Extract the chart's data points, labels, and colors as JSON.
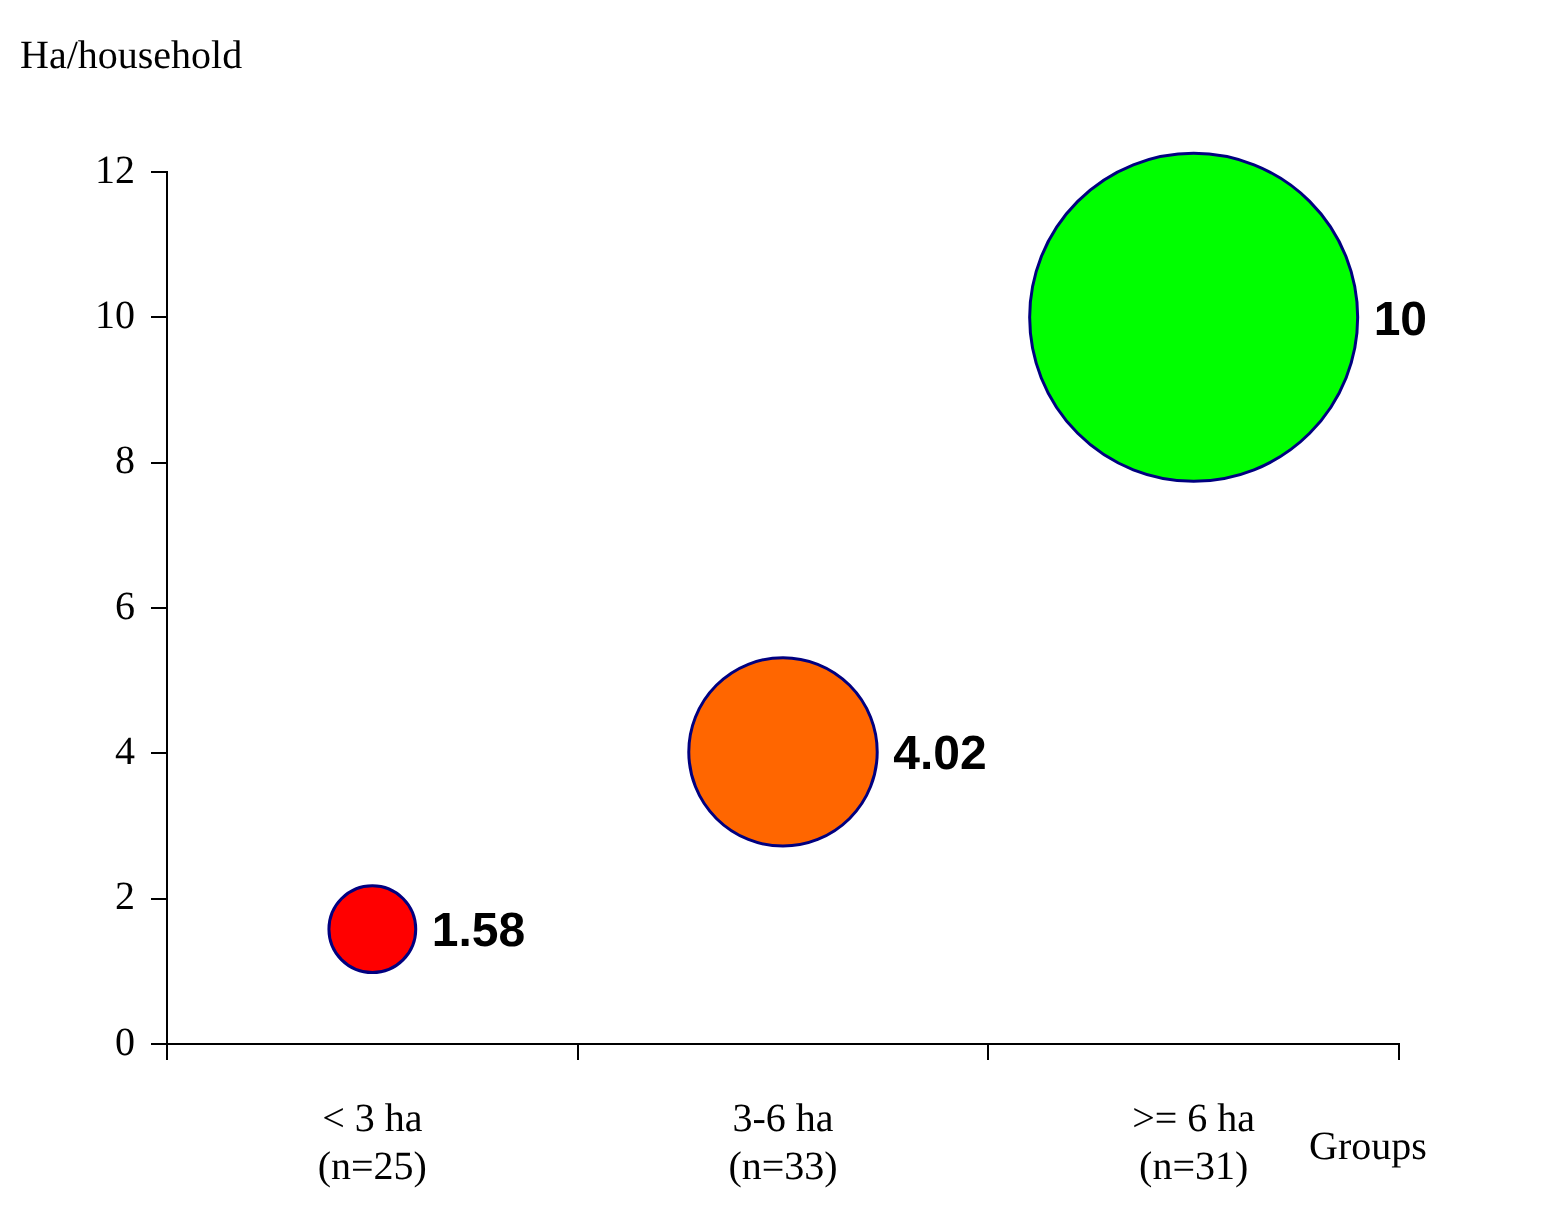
{
  "chart_data": {
    "type": "bubble",
    "xlabel": "Groups",
    "ylabel": "Ha/household",
    "categories": [
      "< 3 ha\n(n=25)",
      "3-6 ha\n(n=33)",
      ">= 6 ha\n(n=31)"
    ],
    "values": [
      1.58,
      4.02,
      10
    ],
    "sizes": [
      0.07,
      0.33,
      1
    ],
    "colors": [
      "#ff0000",
      "#ff6600",
      "#00ff00"
    ],
    "ylim": [
      0,
      12
    ],
    "yticks": [
      0,
      2,
      4,
      6,
      8,
      10,
      12
    ],
    "grid": false,
    "legend": false,
    "data_labels": true
  }
}
